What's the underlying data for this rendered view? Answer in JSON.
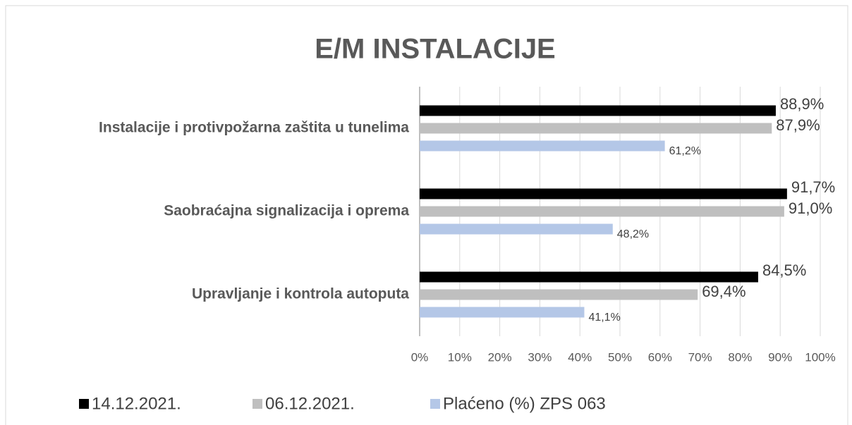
{
  "chart_data": {
    "type": "bar",
    "orientation": "horizontal",
    "title": "E/M INSTALACIJE",
    "categories": [
      "Instalacije i protivpožarna zaštita u tunelima",
      "Saobraćajna signalizacija i oprema",
      "Upravljanje i kontrola autoputa"
    ],
    "series": [
      {
        "name": "14.12.2021.",
        "color": "#000000",
        "values": [
          88.9,
          91.7,
          84.5
        ],
        "value_labels": [
          "88,9%",
          "91,7%",
          "84,5%"
        ]
      },
      {
        "name": "06.12.2021.",
        "color": "#bfbfbf",
        "values": [
          87.9,
          91.0,
          69.4
        ],
        "value_labels": [
          "87,9%",
          "91,0%",
          "69,4%"
        ]
      },
      {
        "name": "Plaćeno (%) ZPS 063",
        "color": "#b4c7e7",
        "values": [
          61.2,
          48.2,
          41.1
        ],
        "value_labels": [
          "61,2%",
          "48,2%",
          "41,1%"
        ]
      }
    ],
    "xlim": [
      0,
      100
    ],
    "xticks": [
      {
        "value": 0,
        "label": "0%"
      },
      {
        "value": 10,
        "label": "10%"
      },
      {
        "value": 20,
        "label": "20%"
      },
      {
        "value": 30,
        "label": "30%"
      },
      {
        "value": 40,
        "label": "40%"
      },
      {
        "value": 50,
        "label": "50%"
      },
      {
        "value": 60,
        "label": "60%"
      },
      {
        "value": 70,
        "label": "70%"
      },
      {
        "value": 80,
        "label": "80%"
      },
      {
        "value": 90,
        "label": "90%"
      },
      {
        "value": 100,
        "label": "100%"
      }
    ],
    "grid": true,
    "legend": "bottom"
  }
}
